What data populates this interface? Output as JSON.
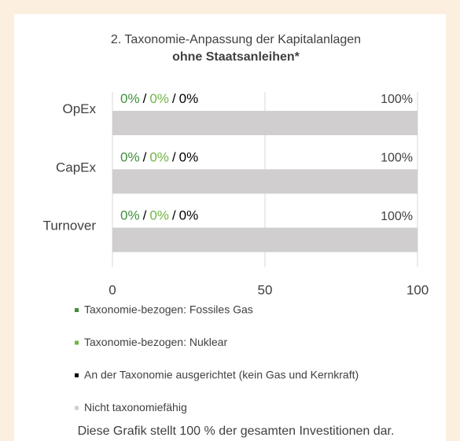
{
  "chart_data": {
    "type": "bar",
    "orientation": "horizontal",
    "stacked": true,
    "title": "2.  Taxonomie-Anpassung der Kapitalanlagen",
    "subtitle": "ohne Staatsanleihen*",
    "categories": [
      "OpEx",
      "CapEx",
      "Turnover"
    ],
    "series": [
      {
        "name": "Taxonomie-bezogen: Fossiles Gas",
        "color": "#3f8f3a",
        "values": [
          0,
          0,
          0
        ],
        "value_labels": [
          "0%",
          "0%",
          "0%"
        ]
      },
      {
        "name": "Taxonomie-bezogen: Nuklear",
        "color": "#71b545",
        "values": [
          0,
          0,
          0
        ],
        "value_labels": [
          "0%",
          "0%",
          "0%"
        ]
      },
      {
        "name": "An der Taxonomie ausgerichtet (kein Gas und Kernkraft)",
        "color": "#000000",
        "values": [
          0,
          0,
          0
        ],
        "value_labels": [
          "0%",
          "0%",
          "0%"
        ]
      },
      {
        "name": "Nicht taxonomiefähig",
        "color": "#d0cece",
        "values": [
          100,
          100,
          100
        ],
        "value_labels": [
          "100%",
          "100%",
          "100%"
        ]
      }
    ],
    "value_label_separator": "/",
    "xlim": [
      0,
      100
    ],
    "xticks": [
      0,
      50,
      100
    ],
    "grid": true,
    "note": "Diese Grafik stellt 100 % der gesamten Investitionen dar."
  }
}
